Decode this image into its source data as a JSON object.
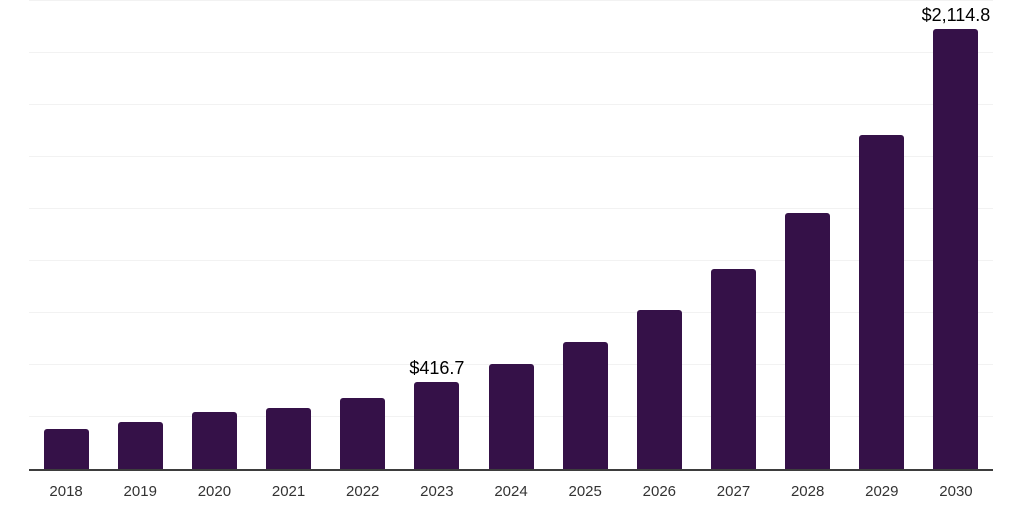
{
  "chart_data": {
    "type": "bar",
    "title": "",
    "xlabel": "",
    "ylabel": "",
    "categories": [
      "2018",
      "2019",
      "2020",
      "2021",
      "2022",
      "2023",
      "2024",
      "2025",
      "2026",
      "2027",
      "2028",
      "2029",
      "2030"
    ],
    "values": [
      190,
      225,
      275,
      291,
      343,
      416.7,
      503,
      612,
      763,
      961,
      1230,
      1606,
      2114.8
    ],
    "data_labels": [
      null,
      null,
      null,
      null,
      null,
      "$416.7",
      null,
      null,
      null,
      null,
      null,
      null,
      "$2,114.8"
    ],
    "ylim": [
      0,
      2250
    ],
    "gridline_step": 250,
    "grid": "horizontal",
    "legend": "none",
    "y_axis_tick_labels_visible": false,
    "colors": {
      "bar": "#351148",
      "axis_line": "#3d3d3d",
      "gridline": "#f2f2f2",
      "data_label": "#000000",
      "tick_label": "#333333"
    }
  }
}
